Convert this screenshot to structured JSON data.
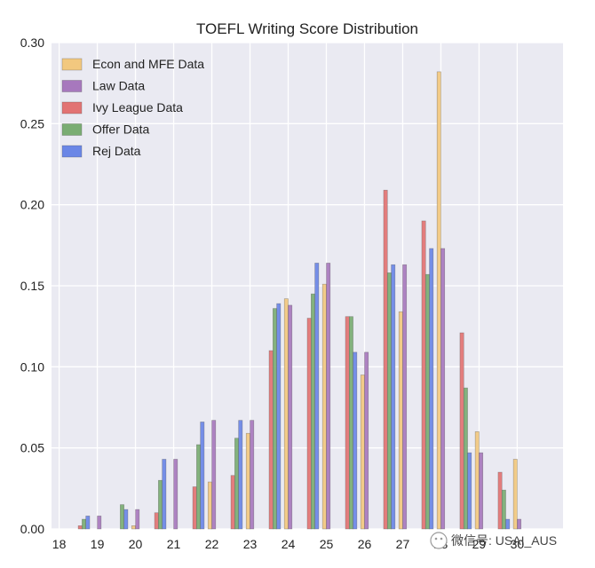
{
  "chart_data": {
    "type": "bar",
    "title": "TOEFL Writing Score Distribution",
    "xlabel": "",
    "ylabel": "",
    "ylim": [
      0,
      0.3
    ],
    "xlim": [
      18,
      30
    ],
    "x_ticks": [
      "18",
      "19",
      "20",
      "21",
      "22",
      "23",
      "24",
      "25",
      "26",
      "27",
      "28",
      "29",
      "30"
    ],
    "y_ticks": [
      "0.00",
      "0.05",
      "0.10",
      "0.15",
      "0.20",
      "0.25",
      "0.30"
    ],
    "grid": true,
    "legend_position": "top-left",
    "bin_width": 0.5,
    "bin_starts": [
      18.5,
      19.5,
      20.5,
      21.5,
      22.5,
      23.5,
      24.5,
      25.5,
      26.5,
      27.5,
      28.5,
      29.5
    ],
    "series": [
      {
        "name": "Econ and MFE Data",
        "color": "#f2c87f",
        "offset": 0.4,
        "values": [
          0.0,
          0.002,
          0.0,
          0.029,
          0.059,
          0.142,
          0.151,
          0.095,
          0.134,
          0.282,
          0.06,
          0.043
        ]
      },
      {
        "name": "Law Data",
        "color": "#a778bd",
        "offset": 0.5,
        "values": [
          0.008,
          0.012,
          0.043,
          0.067,
          0.067,
          0.138,
          0.164,
          0.109,
          0.163,
          0.173,
          0.047,
          0.006
        ]
      },
      {
        "name": "Ivy League Data",
        "color": "#e27373",
        "offset": 0.0,
        "values": [
          0.002,
          0.0,
          0.01,
          0.026,
          0.033,
          0.11,
          0.13,
          0.131,
          0.209,
          0.19,
          0.121,
          0.035
        ]
      },
      {
        "name": "Offer Data",
        "color": "#7aad73",
        "offset": 0.1,
        "values": [
          0.006,
          0.015,
          0.03,
          0.052,
          0.056,
          0.136,
          0.145,
          0.131,
          0.158,
          0.157,
          0.087,
          0.024
        ]
      },
      {
        "name": "Rej Data",
        "color": "#6a86e6",
        "offset": 0.2,
        "values": [
          0.008,
          0.012,
          0.043,
          0.066,
          0.067,
          0.139,
          0.164,
          0.109,
          0.163,
          0.173,
          0.047,
          0.006
        ]
      }
    ]
  },
  "watermark": {
    "text": "微信号: USAI_AUS"
  }
}
